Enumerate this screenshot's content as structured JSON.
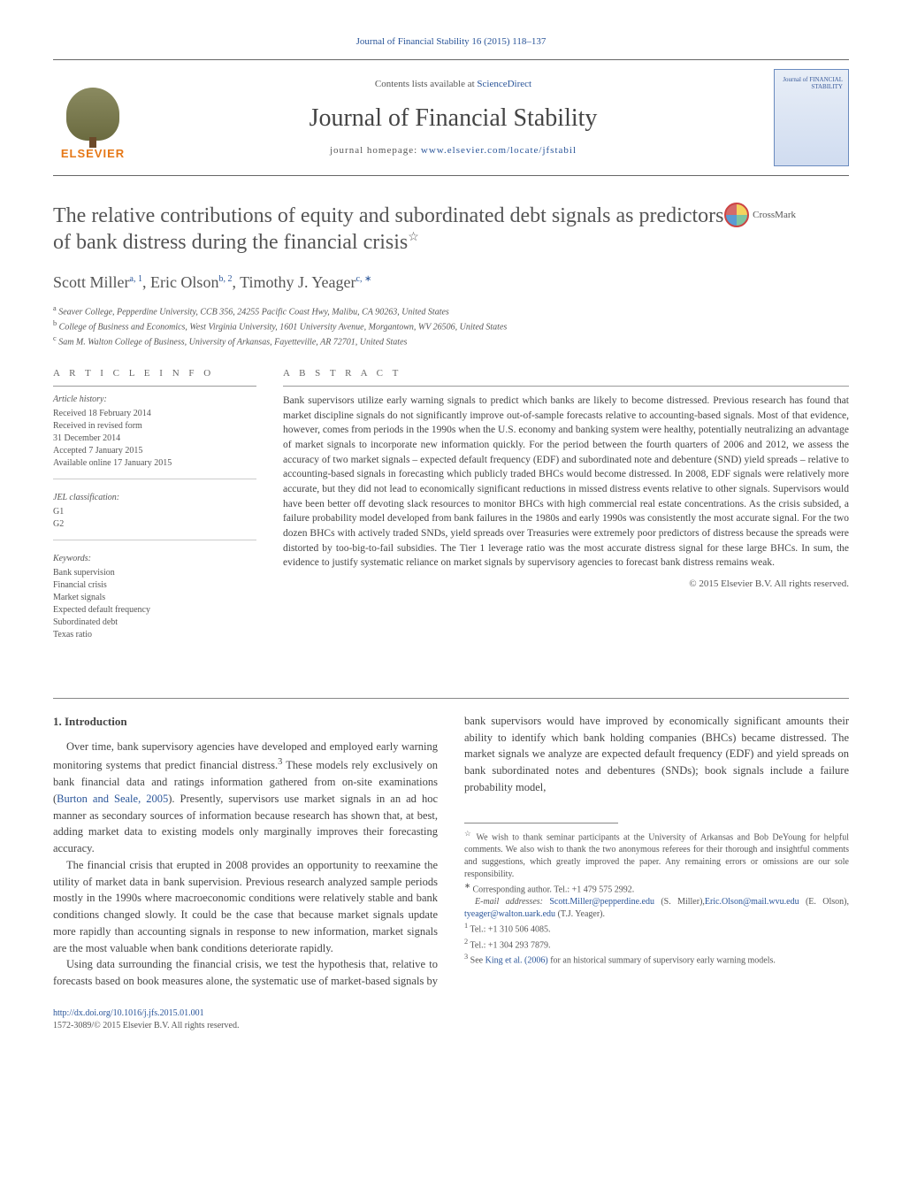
{
  "journal_ref": "Journal of Financial Stability 16 (2015) 118–137",
  "masthead": {
    "publisher_logo": "ELSEVIER",
    "contents_prefix": "Contents lists available at ",
    "contents_link": "ScienceDirect",
    "journal_name": "Journal of Financial Stability",
    "homepage_prefix": "journal homepage: ",
    "homepage_url": "www.elsevier.com/locate/jfstabil",
    "cover_title": "Journal of\nFINANCIAL\nSTABILITY"
  },
  "crossmark_label": "CrossMark",
  "title": "The relative contributions of equity and subordinated debt signals as predictors of bank distress during the financial crisis",
  "title_star": "☆",
  "authors": [
    {
      "name": "Scott Miller",
      "marks": "a, 1"
    },
    {
      "name": "Eric Olson",
      "marks": "b, 2"
    },
    {
      "name": "Timothy J. Yeager",
      "marks": "c, ∗"
    }
  ],
  "affiliations": [
    {
      "mark": "a",
      "text": "Seaver College, Pepperdine University, CCB 356, 24255 Pacific Coast Hwy, Malibu, CA 90263, United States"
    },
    {
      "mark": "b",
      "text": "College of Business and Economics, West Virginia University, 1601 University Avenue, Morgantown, WV 26506, United States"
    },
    {
      "mark": "c",
      "text": "Sam M. Walton College of Business, University of Arkansas, Fayetteville, AR 72701, United States"
    }
  ],
  "article_info": {
    "head": "A R T I C L E   I N F O",
    "history_label": "Article history:",
    "history": [
      "Received 18 February 2014",
      "Received in revised form",
      "31 December 2014",
      "Accepted 7 January 2015",
      "Available online 17 January 2015"
    ],
    "jel_label": "JEL classification:",
    "jel": [
      "G1",
      "G2"
    ],
    "kw_label": "Keywords:",
    "keywords": [
      "Bank supervision",
      "Financial crisis",
      "Market signals",
      "Expected default frequency",
      "Subordinated debt",
      "Texas ratio"
    ]
  },
  "abstract": {
    "head": "A B S T R A C T",
    "text": "Bank supervisors utilize early warning signals to predict which banks are likely to become distressed. Previous research has found that market discipline signals do not significantly improve out-of-sample forecasts relative to accounting-based signals. Most of that evidence, however, comes from periods in the 1990s when the U.S. economy and banking system were healthy, potentially neutralizing an advantage of market signals to incorporate new information quickly. For the period between the fourth quarters of 2006 and 2012, we assess the accuracy of two market signals – expected default frequency (EDF) and subordinated note and debenture (SND) yield spreads – relative to accounting-based signals in forecasting which publicly traded BHCs would become distressed. In 2008, EDF signals were relatively more accurate, but they did not lead to economically significant reductions in missed distress events relative to other signals. Supervisors would have been better off devoting slack resources to monitor BHCs with high commercial real estate concentrations. As the crisis subsided, a failure probability model developed from bank failures in the 1980s and early 1990s was consistently the most accurate signal. For the two dozen BHCs with actively traded SNDs, yield spreads over Treasuries were extremely poor predictors of distress because the spreads were distorted by too-big-to-fail subsidies. The Tier 1 leverage ratio was the most accurate distress signal for these large BHCs. In sum, the evidence to justify systematic reliance on market signals by supervisory agencies to forecast bank distress remains weak.",
    "copyright": "© 2015 Elsevier B.V. All rights reserved."
  },
  "body": {
    "section_num": "1.",
    "section_title": "Introduction",
    "p1": "Over time, bank supervisory agencies have developed and employed early warning monitoring systems that predict financial distress.",
    "p1_fn": "3",
    "p1b": " These models rely exclusively on bank financial data and ratings information gathered from on-site examinations (",
    "p1_cite": "Burton and Seale, 2005",
    "p1c": "). Presently, supervisors use market signals in an ad",
    "p2": "hoc manner as secondary sources of information because research has shown that, at best, adding market data to existing models only marginally improves their forecasting accuracy.",
    "p3": "The financial crisis that erupted in 2008 provides an opportunity to reexamine the utility of market data in bank supervision. Previous research analyzed sample periods mostly in the 1990s where macroeconomic conditions were relatively stable and bank conditions changed slowly. It could be the case that because market signals update more rapidly than accounting signals in response to new information, market signals are the most valuable when bank conditions deteriorate rapidly.",
    "p4": "Using data surrounding the financial crisis, we test the hypothesis that, relative to forecasts based on book measures alone, the systematic use of market-based signals by bank supervisors would have improved by economically significant amounts their ability to identify which bank holding companies (BHCs) became distressed. The market signals we analyze are expected default frequency (EDF) and yield spreads on bank subordinated notes and debentures (SNDs); book signals include a failure probability model,"
  },
  "footnotes": {
    "thanks_mark": "☆",
    "thanks": "We wish to thank seminar participants at the University of Arkansas and Bob DeYoung for helpful comments. We also wish to thank the two anonymous referees for their thorough and insightful comments and suggestions, which greatly improved the paper. Any remaining errors or omissions are our sole responsibility.",
    "corr_mark": "∗",
    "corr": "Corresponding author. Tel.: +1 479 575 2992.",
    "email_label": "E-mail addresses: ",
    "emails": [
      {
        "addr": "Scott.Miller@pepperdine.edu",
        "who": " (S. Miller),"
      },
      {
        "addr": "Eric.Olson@mail.wvu.edu",
        "who": " (E. Olson), "
      },
      {
        "addr": "tyeager@walton.uark.edu",
        "who": " (T.J. Yeager)."
      }
    ],
    "fn1_mark": "1",
    "fn1": "Tel.: +1 310 506 4085.",
    "fn2_mark": "2",
    "fn2": "Tel.: +1 304 293 7879.",
    "fn3_mark": "3",
    "fn3a": "See ",
    "fn3_cite": "King et al. (2006)",
    "fn3b": " for an historical summary of supervisory early warning models."
  },
  "footer": {
    "doi": "http://dx.doi.org/10.1016/j.jfs.2015.01.001",
    "issn_line": "1572-3089/© 2015 Elsevier B.V. All rights reserved."
  },
  "colors": {
    "link": "#2a5599",
    "text": "#444444",
    "rule": "#999999",
    "logo_orange": "#e67817"
  }
}
